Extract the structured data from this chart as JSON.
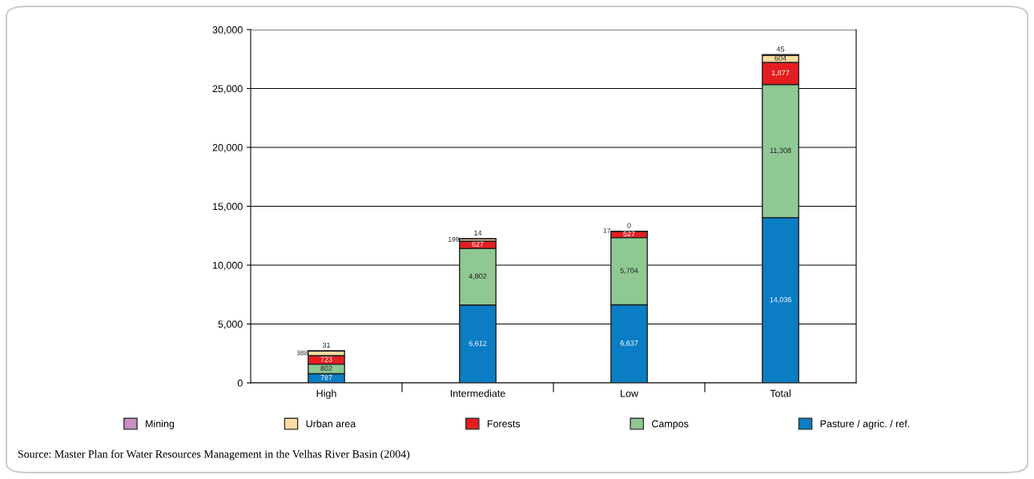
{
  "chart_data": {
    "type": "bar",
    "stacked": true,
    "categories": [
      "High",
      "Intermediate",
      "Low",
      "Total"
    ],
    "series": [
      {
        "name": "Pasture / agric. / ref.",
        "color": "#0a7dc4",
        "values": [
          787,
          6612,
          6637,
          14036
        ],
        "value_labels": [
          "787",
          "6,612",
          "6,637",
          "14,036"
        ]
      },
      {
        "name": "Campos",
        "color": "#8fc893",
        "values": [
          802,
          4802,
          5704,
          11308
        ],
        "value_labels": [
          "802",
          "4,802",
          "5,704",
          "11,308"
        ]
      },
      {
        "name": "Forests",
        "color": "#e41e20",
        "values": [
          723,
          627,
          527,
          1877
        ],
        "value_labels": [
          "723",
          "627",
          "527",
          "1,877"
        ]
      },
      {
        "name": "Urban area",
        "color": "#fddca0",
        "values": [
          388,
          199,
          17,
          604
        ],
        "value_labels": [
          "388",
          "199",
          "17",
          "604"
        ]
      },
      {
        "name": "Mining",
        "color": "#c98fc1",
        "values": [
          31,
          14,
          0,
          45
        ],
        "value_labels": [
          "31",
          "14",
          "0",
          "45"
        ]
      }
    ],
    "ylim": [
      0,
      30000
    ],
    "yticks": [
      {
        "value": 0,
        "label": "0"
      },
      {
        "value": 5000,
        "label": "5,000"
      },
      {
        "value": 10000,
        "label": "10,000"
      },
      {
        "value": 15000,
        "label": "15,000"
      },
      {
        "value": 20000,
        "label": "20,000"
      },
      {
        "value": 25000,
        "label": "25,000"
      },
      {
        "value": 30000,
        "label": "30,000"
      }
    ],
    "grid": "y",
    "legend": "bottom",
    "annotations": [
      "Source: Master Plan for Water Resources Management in the Velhas River Basin (2004)"
    ]
  }
}
